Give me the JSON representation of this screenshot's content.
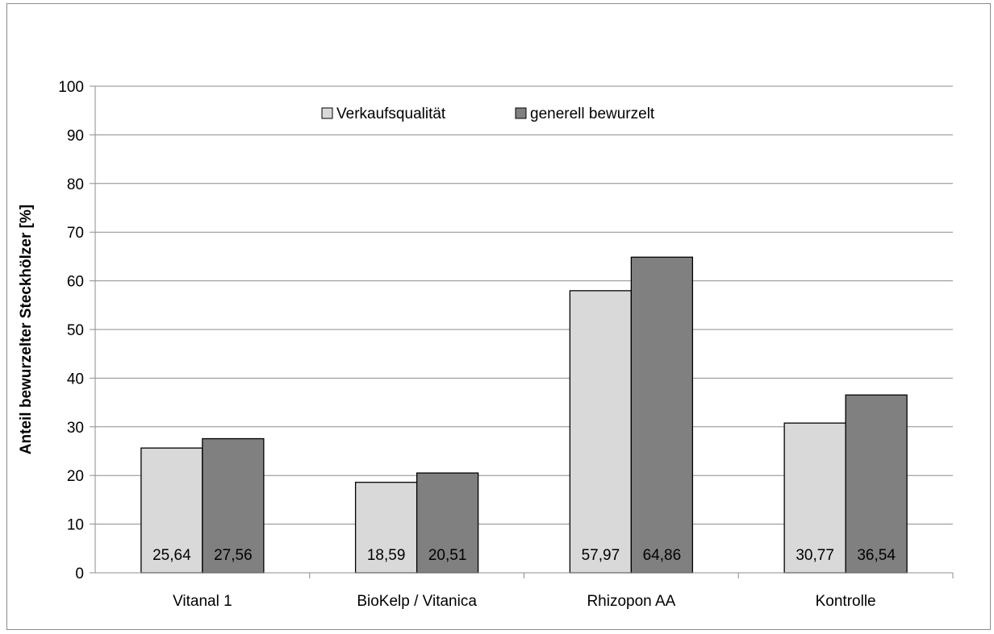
{
  "chart_data": {
    "type": "bar",
    "title": "",
    "xlabel": "",
    "ylabel": "Anteil bewurzelter Steckhölzer [%]",
    "ylim": [
      0,
      100
    ],
    "yticks": [
      0,
      10,
      20,
      30,
      40,
      50,
      60,
      70,
      80,
      90,
      100
    ],
    "grid": true,
    "legend_position": "top-center",
    "categories": [
      "Vitanal 1",
      "BioKelp / Vitanica",
      "Rhizopon AA",
      "Kontrolle"
    ],
    "series": [
      {
        "name": "Verkaufsqualität",
        "color": "#d9d9d9",
        "values": [
          25.64,
          18.59,
          57.97,
          30.77
        ],
        "labels": [
          "25,64",
          "18,59",
          "57,97",
          "30,77"
        ]
      },
      {
        "name": "generell bewurzelt",
        "color": "#808080",
        "values": [
          27.56,
          20.51,
          64.86,
          36.54
        ],
        "labels": [
          "27,56",
          "20,51",
          "64,86",
          "36,54"
        ]
      }
    ]
  }
}
